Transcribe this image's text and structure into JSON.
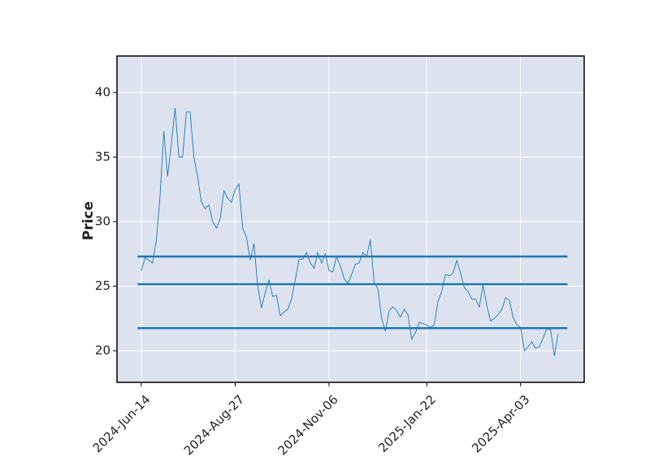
{
  "chart_data": {
    "type": "line",
    "ylabel": "Price",
    "categories": [
      "2024-Jun-14",
      null,
      null,
      null,
      null,
      null,
      null,
      null,
      null,
      null,
      null,
      null,
      null,
      null,
      null,
      null,
      null,
      null,
      null,
      null,
      null,
      null,
      null,
      null,
      null,
      "2024-Aug-27",
      null,
      null,
      null,
      null,
      null,
      null,
      null,
      null,
      null,
      null,
      null,
      null,
      null,
      null,
      null,
      null,
      null,
      null,
      null,
      null,
      null,
      null,
      null,
      null,
      "2024-Nov-06",
      null,
      null,
      null,
      null,
      null,
      null,
      null,
      null,
      null,
      null,
      null,
      null,
      null,
      null,
      null,
      null,
      null,
      null,
      null,
      null,
      null,
      null,
      null,
      null,
      null,
      "2025-Jan-22",
      null,
      null,
      null,
      null,
      null,
      null,
      null,
      null,
      null,
      null,
      null,
      null,
      null,
      null,
      null,
      null,
      null,
      null,
      null,
      null,
      null,
      null,
      null,
      null,
      "2025-Apr-03",
      null,
      null,
      null,
      null,
      null,
      null,
      null,
      null,
      null,
      null
    ],
    "series": [
      {
        "color": "#1f77b4",
        "values": [
          26.2,
          27.2,
          27.0,
          26.8,
          28.5,
          32.0,
          37.0,
          33.5,
          36.0,
          38.8,
          35.0,
          35.0,
          38.5,
          38.5,
          35.0,
          33.5,
          31.5,
          31.0,
          31.3,
          30.0,
          29.5,
          30.2,
          32.4,
          31.8,
          31.5,
          32.5,
          32.9,
          29.5,
          28.8,
          27.0,
          28.3,
          25.0,
          23.3,
          24.5,
          25.5,
          24.2,
          24.3,
          22.7,
          23.0,
          23.2,
          24.0,
          25.5,
          27.1,
          27.1,
          27.6,
          26.8,
          26.4,
          27.6,
          26.8,
          27.5,
          26.2,
          26.1,
          27.3,
          26.6,
          25.6,
          25.2,
          25.9,
          26.7,
          26.8,
          27.6,
          27.3,
          28.6,
          25.3,
          24.8,
          22.5,
          21.5,
          23.1,
          23.4,
          23.1,
          22.6,
          23.2,
          22.8,
          20.9,
          21.4,
          22.2,
          22.1,
          22.0,
          21.8,
          22.0,
          23.8,
          24.6,
          25.9,
          25.8,
          26.0,
          27.0,
          26.0,
          24.9,
          24.6,
          24.0,
          24.0,
          23.4,
          25.1,
          23.5,
          22.3,
          22.5,
          22.8,
          23.2,
          24.1,
          23.9,
          22.6,
          22.0,
          21.8,
          20.0,
          20.3,
          20.7,
          20.2,
          20.3,
          21.0,
          21.7,
          21.6,
          19.6,
          21.3
        ]
      }
    ],
    "hlines": {
      "values": [
        27.3,
        25.15,
        21.75
      ],
      "color": "#1f77b4"
    },
    "ylim": [
      17.55,
      42.83
    ],
    "yticks": [
      20,
      25,
      30,
      35,
      40
    ],
    "grid": true
  }
}
